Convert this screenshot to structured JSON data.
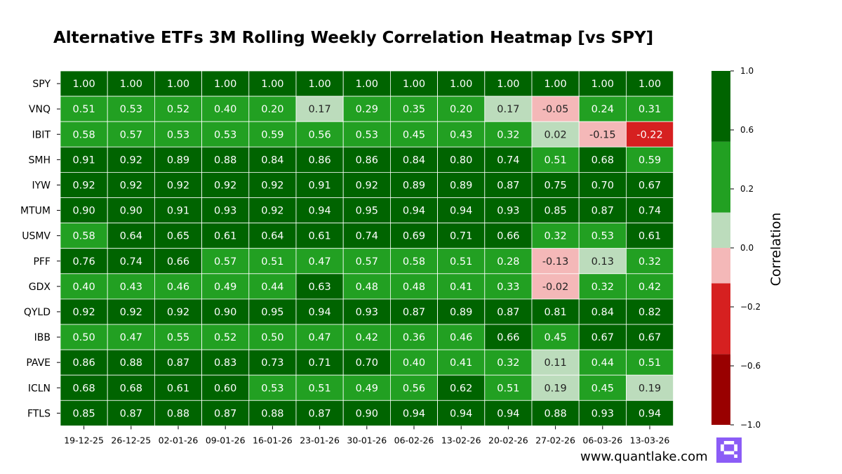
{
  "chart_data": {
    "type": "heatmap",
    "title": "Alternative ETFs 3M Rolling Weekly Correlation Heatmap [vs SPY]",
    "rows": [
      "SPY",
      "VNQ",
      "IBIT",
      "SMH",
      "IYW",
      "MTUM",
      "USMV",
      "PFF",
      "GDX",
      "QYLD",
      "IBB",
      "PAVE",
      "ICLN",
      "FTLS"
    ],
    "columns": [
      "19-12-25",
      "26-12-25",
      "02-01-26",
      "09-01-26",
      "16-01-26",
      "23-01-26",
      "30-01-26",
      "06-02-26",
      "13-02-26",
      "20-02-26",
      "27-02-26",
      "06-03-26",
      "13-03-26"
    ],
    "values": [
      [
        1.0,
        1.0,
        1.0,
        1.0,
        1.0,
        1.0,
        1.0,
        1.0,
        1.0,
        1.0,
        1.0,
        1.0,
        1.0
      ],
      [
        0.51,
        0.53,
        0.52,
        0.4,
        0.2,
        0.17,
        0.29,
        0.35,
        0.2,
        0.17,
        -0.05,
        0.24,
        0.31
      ],
      [
        0.58,
        0.57,
        0.53,
        0.53,
        0.59,
        0.56,
        0.53,
        0.45,
        0.43,
        0.32,
        0.02,
        -0.15,
        -0.22
      ],
      [
        0.91,
        0.92,
        0.89,
        0.88,
        0.84,
        0.86,
        0.86,
        0.84,
        0.8,
        0.74,
        0.51,
        0.68,
        0.59
      ],
      [
        0.92,
        0.92,
        0.92,
        0.92,
        0.92,
        0.91,
        0.92,
        0.89,
        0.89,
        0.87,
        0.75,
        0.7,
        0.67
      ],
      [
        0.9,
        0.9,
        0.91,
        0.93,
        0.92,
        0.94,
        0.95,
        0.94,
        0.94,
        0.93,
        0.85,
        0.87,
        0.74
      ],
      [
        0.58,
        0.64,
        0.65,
        0.61,
        0.64,
        0.61,
        0.74,
        0.69,
        0.71,
        0.66,
        0.32,
        0.53,
        0.61
      ],
      [
        0.76,
        0.74,
        0.66,
        0.57,
        0.51,
        0.47,
        0.57,
        0.58,
        0.51,
        0.28,
        -0.13,
        0.13,
        0.32
      ],
      [
        0.4,
        0.43,
        0.46,
        0.49,
        0.44,
        0.63,
        0.48,
        0.48,
        0.41,
        0.33,
        -0.02,
        0.32,
        0.42
      ],
      [
        0.92,
        0.92,
        0.92,
        0.9,
        0.95,
        0.94,
        0.93,
        0.87,
        0.89,
        0.87,
        0.81,
        0.84,
        0.82
      ],
      [
        0.5,
        0.47,
        0.55,
        0.52,
        0.5,
        0.47,
        0.42,
        0.36,
        0.46,
        0.66,
        0.45,
        0.67,
        0.67
      ],
      [
        0.86,
        0.88,
        0.87,
        0.83,
        0.73,
        0.71,
        0.7,
        0.4,
        0.41,
        0.32,
        0.11,
        0.44,
        0.51
      ],
      [
        0.68,
        0.68,
        0.61,
        0.6,
        0.53,
        0.51,
        0.49,
        0.56,
        0.62,
        0.51,
        0.19,
        0.45,
        0.19
      ],
      [
        0.85,
        0.87,
        0.88,
        0.87,
        0.88,
        0.87,
        0.9,
        0.94,
        0.94,
        0.94,
        0.88,
        0.93,
        0.94
      ]
    ],
    "colorbar": {
      "label": "Correlation",
      "range": [
        -1.0,
        1.0
      ],
      "bounds": [
        -1.0,
        -0.6,
        -0.2,
        0.0,
        0.2,
        0.6,
        1.0
      ],
      "colors": [
        "#990000",
        "#d62020",
        "#f4b8b8",
        "#bcdcbc",
        "#22a022",
        "#006400"
      ],
      "ticks": [
        "1.0",
        "0.6",
        "0.2",
        "0.0",
        "−0.2",
        "−0.6",
        "−1.0"
      ]
    },
    "annotation_light_text_color": "#ffffff",
    "annotation_dark_text_color": "#222222"
  },
  "footer": {
    "website": "www.quantlake.com",
    "logo_color": "#8b5cf6"
  }
}
